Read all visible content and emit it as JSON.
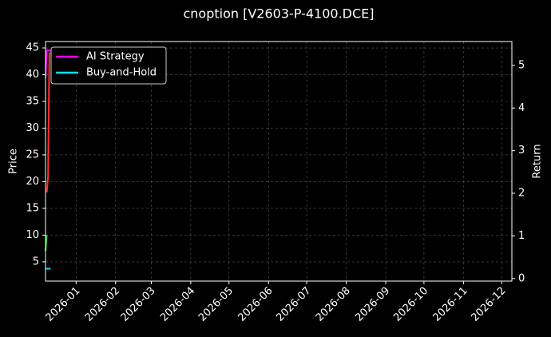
{
  "chart_data": {
    "type": "line",
    "title": "cnoption [V2603-P-4100.DCE]",
    "ylabel": "Price",
    "y2label": "Return",
    "xlim": [
      "2025-12-08",
      "2026-12-09"
    ],
    "xticks": [
      {
        "value": "2026-01-01",
        "label": "2026-01"
      },
      {
        "value": "2026-02-01",
        "label": "2026-02"
      },
      {
        "value": "2026-03-01",
        "label": "2026-03"
      },
      {
        "value": "2026-04-01",
        "label": "2026-04"
      },
      {
        "value": "2026-05-01",
        "label": "2026-05"
      },
      {
        "value": "2026-06-01",
        "label": "2026-06"
      },
      {
        "value": "2026-07-01",
        "label": "2026-07"
      },
      {
        "value": "2026-08-01",
        "label": "2026-08"
      },
      {
        "value": "2026-09-01",
        "label": "2026-09"
      },
      {
        "value": "2026-10-01",
        "label": "2026-10"
      },
      {
        "value": "2026-11-01",
        "label": "2026-11"
      },
      {
        "value": "2026-12-01",
        "label": "2026-12"
      }
    ],
    "ylim": [
      1.4,
      46.2
    ],
    "yticks": [
      5,
      10,
      15,
      20,
      25,
      30,
      35,
      40,
      45
    ],
    "y2lim": [
      -0.06,
      5.56
    ],
    "y2ticks": [
      0,
      1,
      2,
      3,
      4,
      5
    ],
    "grid": true,
    "legend": "upper-left",
    "series": [
      {
        "color": "#2ecc40",
        "x": [
          "2025-12-08",
          "2025-12-09"
        ],
        "values": [
          7,
          10
        ]
      },
      {
        "color": "#ff3030",
        "x": [
          "2025-12-09",
          "2025-12-10",
          "2025-12-11",
          "2025-12-12"
        ],
        "values": [
          18,
          21,
          44,
          44
        ]
      },
      {
        "name": "AI Strategy",
        "color": "#ff00ff",
        "axis": "y2",
        "x": [
          "2025-12-08",
          "2025-12-09",
          "2025-12-10",
          "2025-12-11",
          "2025-12-12"
        ],
        "values": [
          4.7,
          5.35,
          5.35,
          5.35,
          5.35
        ]
      },
      {
        "name": "Buy-and-Hold",
        "color": "#00e5ee",
        "axis": "y2",
        "x": [
          "2025-12-08",
          "2025-12-09",
          "2025-12-10",
          "2025-12-11",
          "2025-12-12"
        ],
        "values": [
          0.23,
          0.23,
          0.23,
          0.23,
          0.23
        ]
      }
    ]
  }
}
